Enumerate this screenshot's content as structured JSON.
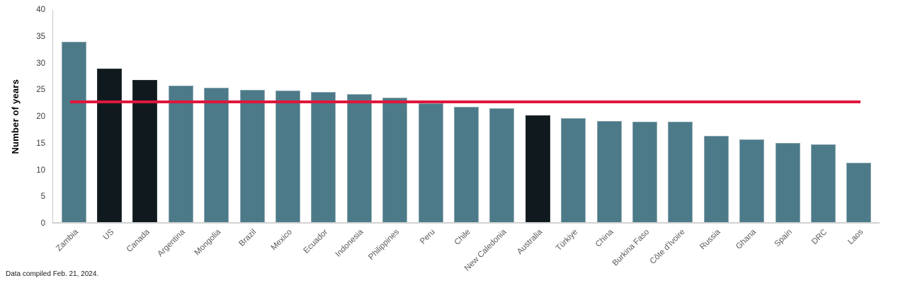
{
  "chart_data": {
    "type": "bar",
    "title": "",
    "xlabel": "",
    "ylabel": "Number of years",
    "ylim": [
      0,
      40
    ],
    "yticks": [
      0,
      5,
      10,
      15,
      20,
      25,
      30,
      35,
      40
    ],
    "grid": false,
    "legend": "none",
    "categories": [
      "Zambia",
      "US",
      "Canada",
      "Argentina",
      "Mongolia",
      "Brazil",
      "Mexico",
      "Ecuador",
      "Indonesia",
      "Philippines",
      "Peru",
      "Chile",
      "New Caledonia",
      "Australia",
      "Türkiye",
      "China",
      "Burkina Faso",
      "Côte d'Ivoire",
      "Russia",
      "Ghana",
      "Spain",
      "DRC",
      "Laos"
    ],
    "values": [
      34,
      29,
      26.8,
      25.7,
      25.4,
      24.9,
      24.8,
      24.5,
      24.1,
      23.5,
      22.4,
      21.7,
      21.5,
      20.2,
      19.6,
      19.1,
      19,
      19,
      16.3,
      15.6,
      15,
      14.7,
      11.2
    ],
    "highlighted_categories": [
      "US",
      "Canada",
      "Australia"
    ],
    "reference_line": {
      "value": 22.7
    },
    "colors": {
      "bar": "#4d7a88",
      "bar_highlight": "#101a1e",
      "reference_line": "#e0163c",
      "axis": "#c8c8c8"
    }
  },
  "footer": {
    "text": "Data compiled Feb. 21, 2024."
  }
}
